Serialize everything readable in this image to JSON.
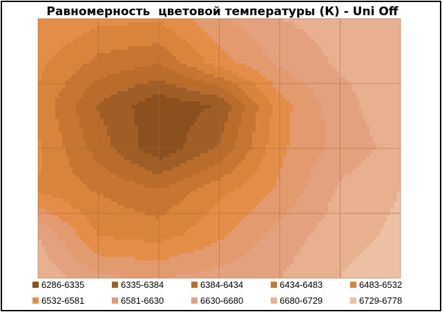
{
  "chart_data": {
    "type": "contour",
    "title": "Равномерность  цветовой температуры (К) - Uni Off",
    "xlabel": "",
    "ylabel": "",
    "grid": true,
    "legend_position": "bottom",
    "bands": [
      {
        "label": "6286-6335",
        "color": "#8c501f"
      },
      {
        "label": "6335-6384",
        "color": "#a05d26"
      },
      {
        "label": "6384-6434",
        "color": "#b96c2c"
      },
      {
        "label": "6434-6483",
        "color": "#c77532"
      },
      {
        "label": "6483-6532",
        "color": "#d8843c"
      },
      {
        "label": "6532-6581",
        "color": "#e38d48"
      },
      {
        "label": "6581-6630",
        "color": "#e39a6e"
      },
      {
        "label": "6630-6680",
        "color": "#e3a17f"
      },
      {
        "label": "6680-6729",
        "color": "#e9b08f"
      },
      {
        "label": "6729-6778",
        "color": "#edc0a3"
      }
    ],
    "grid_values": [
      [
        6583,
        6545,
        6540,
        6620,
        6680,
        6700,
        6680
      ],
      [
        6545,
        6470,
        6440,
        6560,
        6640,
        6690,
        6700
      ],
      [
        6520,
        6380,
        6300,
        6340,
        6560,
        6660,
        6720
      ],
      [
        6540,
        6410,
        6300,
        6390,
        6570,
        6650,
        6700
      ],
      [
        6530,
        6480,
        6440,
        6520,
        6590,
        6690,
        6730
      ],
      [
        6680,
        6530,
        6510,
        6570,
        6650,
        6710,
        6740
      ],
      [
        6720,
        6640,
        6630,
        6650,
        6680,
        6730,
        6760
      ]
    ]
  }
}
